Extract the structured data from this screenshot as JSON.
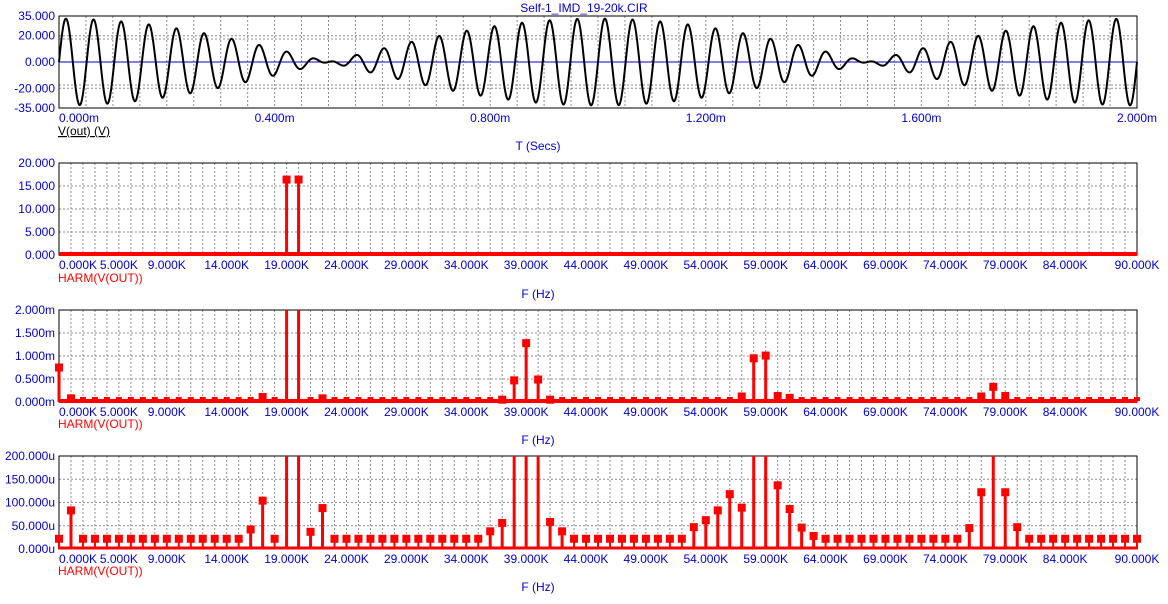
{
  "title": "Self-1_IMD_19-20k.CIR",
  "colors": {
    "axis_text": "#0000cc",
    "trace_red": "#ff0000",
    "trace_black": "#000000",
    "grid": "#8c8c8c",
    "plot_border": "#000000",
    "zero_line": "#0000cc"
  },
  "chart_data": [
    {
      "type": "line",
      "title": "Self-1_IMD_19-20k.CIR",
      "xlabel": "T (Secs)",
      "ylabel": "",
      "trace_label": "V(out) (V)",
      "xlim": [
        0,
        0.002
      ],
      "ylim": [
        -35,
        35
      ],
      "grid": true,
      "x_tick_labels": [
        "0.000m",
        "0.400m",
        "0.800m",
        "1.200m",
        "1.600m",
        "2.000m"
      ],
      "y_tick_labels": [
        "35.000",
        "20.000",
        "0.000",
        "-20.000",
        "-35.000"
      ],
      "series": [
        {
          "label": "V(out) (V)",
          "expr": "16.5*sin(2*pi*19000*t)+16.5*sin(2*pi*20000*t)",
          "amplitude_envelope_peak": 33,
          "components_hz": [
            19000,
            20000
          ],
          "component_amplitude": 16.5
        }
      ]
    },
    {
      "type": "bar",
      "xlabel": "F (Hz)",
      "trace_label": "HARM(V(OUT))",
      "xlim": [
        0,
        90000
      ],
      "ylim": [
        0,
        20
      ],
      "grid": true,
      "x_tick_labels": [
        "0.000K",
        "5.000K",
        "9.000K",
        "14.000K",
        "19.000K",
        "24.000K",
        "29.000K",
        "34.000K",
        "39.000K",
        "44.000K",
        "49.000K",
        "54.000K",
        "59.000K",
        "64.000K",
        "69.000K",
        "74.000K",
        "79.000K",
        "84.000K",
        "90.000K"
      ],
      "y_tick_labels": [
        "20.000",
        "15.000",
        "10.000",
        "5.000",
        "0.000"
      ],
      "series": [
        {
          "label": "HARM(V(OUT))",
          "x": [
            19000,
            20000
          ],
          "values": [
            16.4,
            16.4
          ]
        }
      ]
    },
    {
      "type": "bar",
      "xlabel": "F (Hz)",
      "trace_label": "HARM(V(OUT))",
      "xlim": [
        0,
        90000
      ],
      "ylim": [
        0,
        0.002
      ],
      "grid": true,
      "x_tick_labels": [
        "0.000K",
        "5.000K",
        "9.000K",
        "14.000K",
        "19.000K",
        "24.000K",
        "29.000K",
        "34.000K",
        "39.000K",
        "44.000K",
        "49.000K",
        "54.000K",
        "59.000K",
        "64.000K",
        "69.000K",
        "74.000K",
        "79.000K",
        "84.000K",
        "90.000K"
      ],
      "y_tick_labels": [
        "2.000m",
        "1.500m",
        "1.000m",
        "0.500m",
        "0.000m"
      ],
      "series": [
        {
          "label": "HARM(V(OUT))",
          "x": [
            0,
            1000,
            17000,
            19000,
            20000,
            22000,
            37000,
            38000,
            39000,
            40000,
            41000,
            57000,
            58000,
            59000,
            60000,
            61000,
            77000,
            78000,
            79000
          ],
          "values": [
            0.00075,
            8e-05,
            0.00011,
            0.002,
            0.002,
            8e-05,
            5e-05,
            0.00047,
            0.00128,
            0.00049,
            5e-05,
            0.00012,
            0.00095,
            0.00101,
            0.00013,
            9e-05,
            0.00012,
            0.00033,
            0.00013
          ]
        }
      ]
    },
    {
      "type": "bar",
      "xlabel": "F (Hz)",
      "trace_label": "HARM(V(OUT))",
      "xlim": [
        0,
        90000
      ],
      "ylim": [
        0,
        0.0002
      ],
      "grid": true,
      "x_tick_labels": [
        "0.000K",
        "5.000K",
        "9.000K",
        "14.000K",
        "19.000K",
        "24.000K",
        "29.000K",
        "34.000K",
        "39.000K",
        "44.000K",
        "49.000K",
        "54.000K",
        "59.000K",
        "64.000K",
        "69.000K",
        "74.000K",
        "79.000K",
        "84.000K",
        "90.000K"
      ],
      "y_tick_labels": [
        "200.000u",
        "150.000u",
        "100.000u",
        "50.000u",
        "0.000u"
      ],
      "series": [
        {
          "label": "HARM(V(OUT))",
          "x": [
            1000,
            16000,
            17000,
            19000,
            20000,
            21000,
            22000,
            36000,
            37000,
            38000,
            39000,
            40000,
            41000,
            42000,
            53000,
            54000,
            55000,
            56000,
            57000,
            58000,
            59000,
            60000,
            61000,
            62000,
            63000,
            76000,
            77000,
            78000,
            79000,
            80000
          ],
          "values": [
            8.3e-05,
            4.2e-05,
            0.000104,
            0.0002,
            0.0002,
            3.7e-05,
            8.8e-05,
            3.8e-05,
            5.6e-05,
            0.0002,
            0.0002,
            0.0002,
            5.8e-05,
            3.8e-05,
            4.7e-05,
            6.2e-05,
            8.3e-05,
            0.000118,
            8.9e-05,
            0.0002,
            0.0002,
            0.000137,
            8.6e-05,
            4.6e-05,
            2.8e-05,
            4.5e-05,
            0.000122,
            0.0002,
            0.000122,
            4.7e-05
          ],
          "floor_value": 2.2e-05
        }
      ]
    }
  ]
}
